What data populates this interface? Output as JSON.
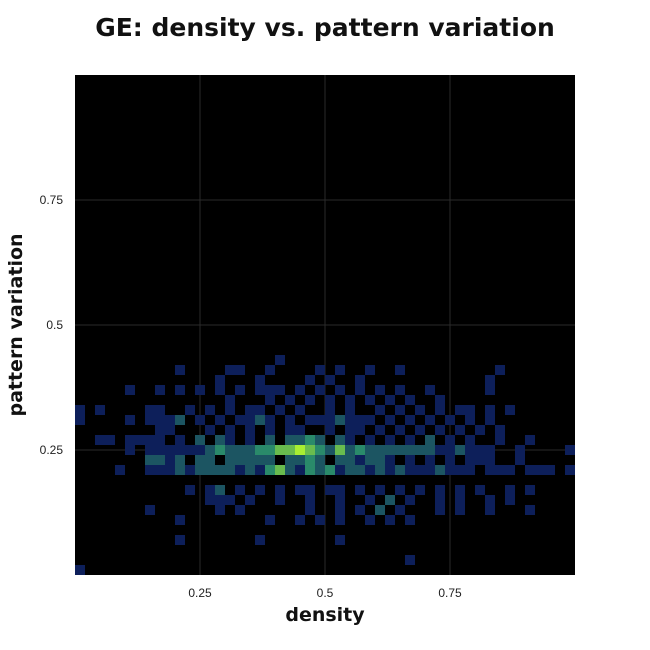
{
  "chart_data": {
    "type": "heatmap",
    "title": "GE: density vs. pattern variation",
    "xlabel": "density",
    "ylabel": "pattern variation",
    "xlim": [
      0,
      1
    ],
    "ylim": [
      0,
      1
    ],
    "bin_size": 0.02,
    "grid": true,
    "xticks": [
      0.25,
      0.5,
      0.75
    ],
    "yticks": [
      0.25,
      0.5,
      0.75
    ],
    "xtick_labels": [
      "0.25",
      "0.5",
      "0.75"
    ],
    "ytick_labels": [
      "0.25",
      "0.5",
      "0.75"
    ],
    "colors": {
      "background": "#000000",
      "low": "#0d1f5a",
      "mid": "#2a8a6a",
      "high": "#a8ee32",
      "grid": "#2a2a2a"
    },
    "bins": [
      [
        0.01,
        0.01,
        1
      ],
      [
        0.21,
        0.07,
        1
      ],
      [
        0.37,
        0.07,
        1
      ],
      [
        0.53,
        0.07,
        1
      ],
      [
        0.67,
        0.03,
        1
      ],
      [
        0.15,
        0.13,
        1
      ],
      [
        0.29,
        0.13,
        1
      ],
      [
        0.33,
        0.13,
        1
      ],
      [
        0.47,
        0.13,
        1
      ],
      [
        0.53,
        0.13,
        1
      ],
      [
        0.57,
        0.13,
        1
      ],
      [
        0.61,
        0.13,
        2
      ],
      [
        0.65,
        0.13,
        1
      ],
      [
        0.73,
        0.13,
        1
      ],
      [
        0.77,
        0.13,
        1
      ],
      [
        0.83,
        0.13,
        1
      ],
      [
        0.91,
        0.13,
        1
      ],
      [
        0.21,
        0.11,
        1
      ],
      [
        0.39,
        0.11,
        1
      ],
      [
        0.45,
        0.11,
        1
      ],
      [
        0.49,
        0.11,
        1
      ],
      [
        0.53,
        0.11,
        1
      ],
      [
        0.59,
        0.11,
        1
      ],
      [
        0.63,
        0.11,
        1
      ],
      [
        0.67,
        0.11,
        1
      ],
      [
        0.27,
        0.15,
        1
      ],
      [
        0.29,
        0.15,
        1
      ],
      [
        0.31,
        0.15,
        1
      ],
      [
        0.35,
        0.15,
        1
      ],
      [
        0.41,
        0.15,
        1
      ],
      [
        0.47,
        0.15,
        1
      ],
      [
        0.53,
        0.15,
        1
      ],
      [
        0.59,
        0.15,
        1
      ],
      [
        0.63,
        0.15,
        2
      ],
      [
        0.67,
        0.15,
        1
      ],
      [
        0.73,
        0.15,
        1
      ],
      [
        0.77,
        0.15,
        1
      ],
      [
        0.83,
        0.15,
        1
      ],
      [
        0.87,
        0.15,
        1
      ],
      [
        0.23,
        0.17,
        1
      ],
      [
        0.27,
        0.17,
        1
      ],
      [
        0.29,
        0.17,
        2
      ],
      [
        0.33,
        0.17,
        1
      ],
      [
        0.37,
        0.17,
        1
      ],
      [
        0.41,
        0.17,
        1
      ],
      [
        0.45,
        0.17,
        1
      ],
      [
        0.47,
        0.17,
        1
      ],
      [
        0.51,
        0.17,
        1
      ],
      [
        0.53,
        0.17,
        1
      ],
      [
        0.57,
        0.17,
        1
      ],
      [
        0.61,
        0.17,
        1
      ],
      [
        0.65,
        0.17,
        1
      ],
      [
        0.69,
        0.17,
        1
      ],
      [
        0.73,
        0.17,
        1
      ],
      [
        0.77,
        0.17,
        1
      ],
      [
        0.81,
        0.17,
        1
      ],
      [
        0.87,
        0.17,
        1
      ],
      [
        0.91,
        0.17,
        1
      ],
      [
        0.15,
        0.21,
        1
      ],
      [
        0.19,
        0.21,
        1
      ],
      [
        0.23,
        0.21,
        1
      ],
      [
        0.27,
        0.21,
        2
      ],
      [
        0.33,
        0.21,
        1
      ],
      [
        0.37,
        0.21,
        1
      ],
      [
        0.41,
        0.21,
        1
      ],
      [
        0.45,
        0.21,
        1
      ],
      [
        0.53,
        0.21,
        1
      ],
      [
        0.59,
        0.21,
        1
      ],
      [
        0.63,
        0.21,
        1
      ],
      [
        0.67,
        0.21,
        1
      ],
      [
        0.71,
        0.21,
        1
      ],
      [
        0.77,
        0.21,
        1
      ],
      [
        0.83,
        0.21,
        1
      ],
      [
        0.87,
        0.21,
        1
      ],
      [
        0.95,
        0.21,
        1
      ],
      [
        0.99,
        0.21,
        1
      ],
      [
        0.09,
        0.21,
        1
      ],
      [
        0.17,
        0.21,
        1
      ],
      [
        0.21,
        0.21,
        2
      ],
      [
        0.25,
        0.21,
        2
      ],
      [
        0.29,
        0.21,
        2
      ],
      [
        0.31,
        0.21,
        2
      ],
      [
        0.35,
        0.21,
        2
      ],
      [
        0.39,
        0.21,
        3
      ],
      [
        0.41,
        0.21,
        4
      ],
      [
        0.43,
        0.21,
        2
      ],
      [
        0.47,
        0.21,
        3
      ],
      [
        0.49,
        0.21,
        2
      ],
      [
        0.51,
        0.21,
        3
      ],
      [
        0.55,
        0.21,
        2
      ],
      [
        0.57,
        0.21,
        2
      ],
      [
        0.61,
        0.21,
        2
      ],
      [
        0.65,
        0.21,
        2
      ],
      [
        0.69,
        0.21,
        1
      ],
      [
        0.73,
        0.21,
        2
      ],
      [
        0.75,
        0.21,
        1
      ],
      [
        0.79,
        0.21,
        1
      ],
      [
        0.85,
        0.21,
        1
      ],
      [
        0.91,
        0.21,
        1
      ],
      [
        0.93,
        0.21,
        1
      ],
      [
        0.15,
        0.23,
        2
      ],
      [
        0.17,
        0.23,
        2
      ],
      [
        0.19,
        0.23,
        1
      ],
      [
        0.21,
        0.23,
        2
      ],
      [
        0.25,
        0.23,
        2
      ],
      [
        0.27,
        0.23,
        2
      ],
      [
        0.31,
        0.23,
        2
      ],
      [
        0.33,
        0.23,
        2
      ],
      [
        0.35,
        0.23,
        2
      ],
      [
        0.37,
        0.23,
        2
      ],
      [
        0.39,
        0.23,
        2
      ],
      [
        0.43,
        0.23,
        2
      ],
      [
        0.45,
        0.23,
        2
      ],
      [
        0.47,
        0.23,
        3
      ],
      [
        0.49,
        0.23,
        2
      ],
      [
        0.53,
        0.23,
        2
      ],
      [
        0.55,
        0.23,
        2
      ],
      [
        0.57,
        0.23,
        1
      ],
      [
        0.59,
        0.23,
        2
      ],
      [
        0.61,
        0.23,
        2
      ],
      [
        0.63,
        0.23,
        1
      ],
      [
        0.67,
        0.23,
        1
      ],
      [
        0.71,
        0.23,
        1
      ],
      [
        0.75,
        0.23,
        1
      ],
      [
        0.79,
        0.23,
        1
      ],
      [
        0.81,
        0.23,
        1
      ],
      [
        0.83,
        0.23,
        1
      ],
      [
        0.89,
        0.23,
        1
      ],
      [
        0.05,
        0.27,
        1
      ],
      [
        0.13,
        0.27,
        1
      ],
      [
        0.15,
        0.27,
        1
      ],
      [
        0.17,
        0.27,
        1
      ],
      [
        0.21,
        0.27,
        1
      ],
      [
        0.25,
        0.27,
        2
      ],
      [
        0.29,
        0.27,
        2
      ],
      [
        0.31,
        0.27,
        1
      ],
      [
        0.35,
        0.27,
        1
      ],
      [
        0.39,
        0.27,
        2
      ],
      [
        0.43,
        0.27,
        2
      ],
      [
        0.45,
        0.27,
        2
      ],
      [
        0.47,
        0.27,
        3
      ],
      [
        0.49,
        0.27,
        2
      ],
      [
        0.53,
        0.27,
        2
      ],
      [
        0.55,
        0.27,
        1
      ],
      [
        0.59,
        0.27,
        1
      ],
      [
        0.63,
        0.27,
        1
      ],
      [
        0.67,
        0.27,
        1
      ],
      [
        0.71,
        0.27,
        2
      ],
      [
        0.75,
        0.27,
        1
      ],
      [
        0.79,
        0.27,
        1
      ],
      [
        0.85,
        0.27,
        1
      ],
      [
        0.91,
        0.27,
        1
      ],
      [
        0.11,
        0.25,
        1
      ],
      [
        0.15,
        0.25,
        1
      ],
      [
        0.17,
        0.25,
        1
      ],
      [
        0.19,
        0.25,
        1
      ],
      [
        0.21,
        0.25,
        1
      ],
      [
        0.23,
        0.25,
        1
      ],
      [
        0.25,
        0.25,
        1
      ],
      [
        0.27,
        0.25,
        2
      ],
      [
        0.29,
        0.25,
        3
      ],
      [
        0.31,
        0.25,
        2
      ],
      [
        0.33,
        0.25,
        2
      ],
      [
        0.35,
        0.25,
        2
      ],
      [
        0.37,
        0.25,
        3
      ],
      [
        0.39,
        0.25,
        3
      ],
      [
        0.41,
        0.25,
        4
      ],
      [
        0.43,
        0.25,
        4
      ],
      [
        0.45,
        0.25,
        5
      ],
      [
        0.47,
        0.25,
        4
      ],
      [
        0.49,
        0.25,
        3
      ],
      [
        0.51,
        0.25,
        2
      ],
      [
        0.53,
        0.25,
        4
      ],
      [
        0.55,
        0.25,
        2
      ],
      [
        0.57,
        0.25,
        3
      ],
      [
        0.59,
        0.25,
        2
      ],
      [
        0.61,
        0.25,
        2
      ],
      [
        0.63,
        0.25,
        2
      ],
      [
        0.65,
        0.25,
        2
      ],
      [
        0.67,
        0.25,
        2
      ],
      [
        0.69,
        0.25,
        2
      ],
      [
        0.71,
        0.25,
        2
      ],
      [
        0.73,
        0.25,
        1
      ],
      [
        0.75,
        0.25,
        1
      ],
      [
        0.77,
        0.25,
        2
      ],
      [
        0.79,
        0.25,
        1
      ],
      [
        0.81,
        0.25,
        1
      ],
      [
        0.83,
        0.25,
        1
      ],
      [
        0.89,
        0.25,
        1
      ],
      [
        0.99,
        0.25,
        1
      ],
      [
        0.07,
        0.27,
        1
      ],
      [
        0.11,
        0.27,
        1
      ],
      [
        0.17,
        0.29,
        1
      ],
      [
        0.19,
        0.29,
        1
      ],
      [
        0.27,
        0.29,
        1
      ],
      [
        0.31,
        0.29,
        1
      ],
      [
        0.35,
        0.29,
        1
      ],
      [
        0.39,
        0.29,
        1
      ],
      [
        0.43,
        0.29,
        1
      ],
      [
        0.45,
        0.29,
        1
      ],
      [
        0.51,
        0.29,
        1
      ],
      [
        0.55,
        0.29,
        1
      ],
      [
        0.57,
        0.29,
        1
      ],
      [
        0.61,
        0.29,
        1
      ],
      [
        0.65,
        0.29,
        1
      ],
      [
        0.69,
        0.29,
        1
      ],
      [
        0.73,
        0.29,
        1
      ],
      [
        0.77,
        0.29,
        1
      ],
      [
        0.81,
        0.29,
        1
      ],
      [
        0.85,
        0.29,
        1
      ],
      [
        0.01,
        0.33,
        1
      ],
      [
        0.05,
        0.33,
        1
      ],
      [
        0.15,
        0.33,
        1
      ],
      [
        0.17,
        0.33,
        1
      ],
      [
        0.23,
        0.33,
        1
      ],
      [
        0.27,
        0.33,
        1
      ],
      [
        0.31,
        0.33,
        1
      ],
      [
        0.35,
        0.33,
        1
      ],
      [
        0.37,
        0.33,
        1
      ],
      [
        0.41,
        0.33,
        1
      ],
      [
        0.45,
        0.33,
        1
      ],
      [
        0.51,
        0.33,
        1
      ],
      [
        0.55,
        0.33,
        1
      ],
      [
        0.61,
        0.33,
        1
      ],
      [
        0.65,
        0.33,
        1
      ],
      [
        0.69,
        0.33,
        1
      ],
      [
        0.73,
        0.33,
        1
      ],
      [
        0.77,
        0.33,
        1
      ],
      [
        0.79,
        0.33,
        1
      ],
      [
        0.83,
        0.33,
        1
      ],
      [
        0.87,
        0.33,
        1
      ],
      [
        0.01,
        0.31,
        1
      ],
      [
        0.11,
        0.31,
        1
      ],
      [
        0.15,
        0.31,
        1
      ],
      [
        0.17,
        0.31,
        1
      ],
      [
        0.19,
        0.31,
        1
      ],
      [
        0.21,
        0.31,
        2
      ],
      [
        0.25,
        0.31,
        1
      ],
      [
        0.29,
        0.31,
        1
      ],
      [
        0.33,
        0.31,
        1
      ],
      [
        0.35,
        0.31,
        1
      ],
      [
        0.37,
        0.31,
        2
      ],
      [
        0.39,
        0.31,
        1
      ],
      [
        0.43,
        0.31,
        1
      ],
      [
        0.47,
        0.31,
        1
      ],
      [
        0.49,
        0.31,
        1
      ],
      [
        0.51,
        0.31,
        1
      ],
      [
        0.53,
        0.31,
        2
      ],
      [
        0.55,
        0.31,
        1
      ],
      [
        0.57,
        0.31,
        1
      ],
      [
        0.59,
        0.31,
        1
      ],
      [
        0.63,
        0.31,
        1
      ],
      [
        0.67,
        0.31,
        1
      ],
      [
        0.71,
        0.31,
        1
      ],
      [
        0.75,
        0.31,
        1
      ],
      [
        0.79,
        0.31,
        1
      ],
      [
        0.83,
        0.31,
        1
      ],
      [
        0.11,
        0.37,
        1
      ],
      [
        0.17,
        0.37,
        1
      ],
      [
        0.25,
        0.37,
        1
      ],
      [
        0.29,
        0.37,
        1
      ],
      [
        0.33,
        0.37,
        1
      ],
      [
        0.37,
        0.37,
        1
      ],
      [
        0.39,
        0.37,
        1
      ],
      [
        0.41,
        0.37,
        1
      ],
      [
        0.45,
        0.37,
        1
      ],
      [
        0.49,
        0.37,
        1
      ],
      [
        0.53,
        0.37,
        1
      ],
      [
        0.57,
        0.37,
        1
      ],
      [
        0.61,
        0.37,
        1
      ],
      [
        0.65,
        0.37,
        1
      ],
      [
        0.71,
        0.37,
        1
      ],
      [
        0.83,
        0.37,
        1
      ],
      [
        0.21,
        0.37,
        1
      ],
      [
        0.31,
        0.35,
        1
      ],
      [
        0.39,
        0.35,
        1
      ],
      [
        0.43,
        0.35,
        1
      ],
      [
        0.47,
        0.35,
        1
      ],
      [
        0.51,
        0.35,
        1
      ],
      [
        0.55,
        0.35,
        1
      ],
      [
        0.59,
        0.35,
        1
      ],
      [
        0.63,
        0.35,
        1
      ],
      [
        0.67,
        0.35,
        1
      ],
      [
        0.73,
        0.35,
        1
      ],
      [
        0.21,
        0.41,
        1
      ],
      [
        0.31,
        0.41,
        1
      ],
      [
        0.33,
        0.41,
        1
      ],
      [
        0.39,
        0.41,
        1
      ],
      [
        0.49,
        0.41,
        1
      ],
      [
        0.53,
        0.41,
        1
      ],
      [
        0.59,
        0.41,
        1
      ],
      [
        0.65,
        0.41,
        1
      ],
      [
        0.85,
        0.41,
        1
      ],
      [
        0.41,
        0.43,
        1
      ],
      [
        0.29,
        0.39,
        1
      ],
      [
        0.37,
        0.39,
        1
      ],
      [
        0.51,
        0.39,
        1
      ],
      [
        0.57,
        0.39,
        1
      ],
      [
        0.83,
        0.39,
        1
      ],
      [
        0.47,
        0.39,
        1
      ]
    ]
  }
}
